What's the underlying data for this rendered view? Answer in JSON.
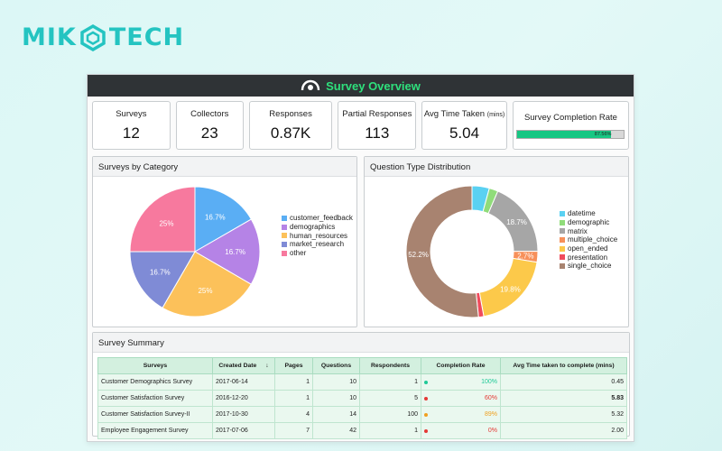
{
  "brand": {
    "left": "MIK",
    "right": "TECH"
  },
  "window": {
    "title": "Survey Overview"
  },
  "kpis": [
    {
      "label": "Surveys",
      "value": "12"
    },
    {
      "label": "Collectors",
      "value": "23"
    },
    {
      "label": "Responses",
      "value": "0.87K"
    },
    {
      "label": "Partial Responses",
      "value": "113"
    },
    {
      "label": "Avg Time Taken",
      "label_small": "(mins)",
      "value": "5.04"
    },
    {
      "label": "Survey Completion Rate",
      "progress_text": "87.56%",
      "progress_pct": 87.56
    }
  ],
  "colors": {
    "accent": "#2ee07c",
    "progress": "#17c783",
    "pos": "#20c997",
    "warn": "#f0a020",
    "neg": "#e53935"
  },
  "panels": {
    "category_title": "Surveys by Category",
    "question_title": "Question Type Distribution"
  },
  "chart_data": [
    {
      "type": "pie",
      "title": "Surveys by Category",
      "categories": [
        "customer_feedback",
        "demographics",
        "human_resources",
        "market_research",
        "other"
      ],
      "values": [
        16.7,
        16.7,
        25,
        16.7,
        25
      ],
      "value_labels": [
        "16.7%",
        "16.7%",
        "25%",
        "16.7%",
        "25%"
      ],
      "colors": [
        "#5aaef4",
        "#b583e6",
        "#fcc15a",
        "#7f8bd6",
        "#f7799e"
      ],
      "legend": "right"
    },
    {
      "type": "pie",
      "title": "Question Type Distribution",
      "donut": true,
      "categories": [
        "datetime",
        "demographic",
        "matrix",
        "multiple_choice",
        "open_ended",
        "presentation",
        "single_choice"
      ],
      "values": [
        4.3,
        2.2,
        18.7,
        2.7,
        19.8,
        1.3,
        52.2
      ],
      "value_labels": [
        "",
        "",
        "18.7%",
        "2.7%",
        "19.8%",
        "",
        "52.2%"
      ],
      "colors": [
        "#5ad1f2",
        "#90dc7a",
        "#a6a6a6",
        "#f7905a",
        "#fcc94a",
        "#f04b5c",
        "#a88370"
      ],
      "legend": "right"
    }
  ],
  "summary": {
    "title": "Survey Summary",
    "columns": [
      "Surveys",
      "Created Date",
      "Pages",
      "Questions",
      "Respondents",
      "Completion Rate",
      "Avg Time taken to complete (mins)"
    ],
    "sort_icon": "arrow-down-icon",
    "rows": [
      {
        "survey": "Customer Demographics Survey",
        "created": "2017-06-14",
        "pages": "1",
        "questions": "10",
        "respondents": "1",
        "rate": "100%",
        "rate_color": "#20c997",
        "avg": "0.45"
      },
      {
        "survey": "Customer Satisfaction Survey",
        "created": "2016-12-20",
        "pages": "1",
        "questions": "10",
        "respondents": "5",
        "rate": "60%",
        "rate_color": "#e53935",
        "avg": "5.83"
      },
      {
        "survey": "Customer Satisfaction Survey-II",
        "created": "2017-10-30",
        "pages": "4",
        "questions": "14",
        "respondents": "100",
        "rate": "89%",
        "rate_color": "#f0a020",
        "avg": "5.32"
      },
      {
        "survey": "Employee Engagement Survey",
        "created": "2017-07-06",
        "pages": "7",
        "questions": "42",
        "respondents": "1",
        "rate": "0%",
        "rate_color": "#e53935",
        "avg": "2.00"
      }
    ]
  }
}
